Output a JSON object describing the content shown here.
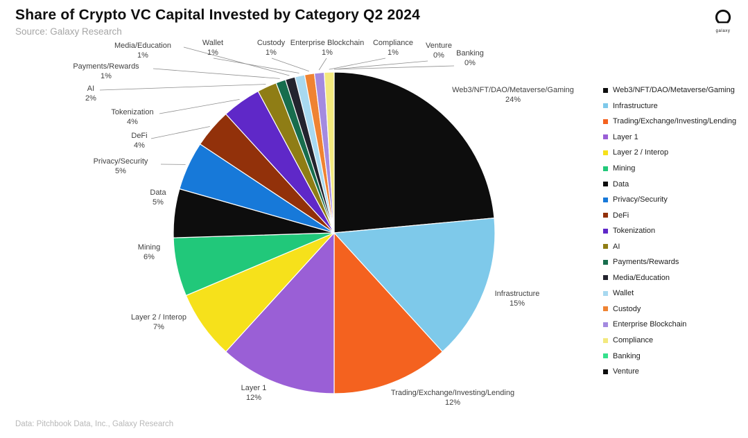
{
  "header": {
    "title": "Share of Crypto VC Capital Invested by Category Q2 2024",
    "subtitle": "Source: Galaxy Research",
    "logo_text": "galaxy"
  },
  "footer": {
    "source": "Data: Pitchbook Data, Inc., Galaxy Research"
  },
  "chart_data": {
    "type": "pie",
    "title": "Share of Crypto VC Capital Invested by Category Q2 2024",
    "source": "Data: Pitchbook Data, Inc., Galaxy Research",
    "legend_position": "right",
    "start_angle_deg": -90,
    "direction": "clockwise",
    "slices": [
      {
        "label": "Web3/NFT/DAO/Metaverse/Gaming",
        "value": 24,
        "pct": "24%",
        "color": "#0d0d0d"
      },
      {
        "label": "Infrastructure",
        "value": 15,
        "pct": "15%",
        "color": "#7ec9ea"
      },
      {
        "label": "Trading/Exchange/Investing/Lending",
        "value": 12,
        "pct": "12%",
        "color": "#f4621f"
      },
      {
        "label": "Layer 1",
        "value": 12,
        "pct": "12%",
        "color": "#9a5fd6"
      },
      {
        "label": "Layer 2 / Interop",
        "value": 7,
        "pct": "7%",
        "color": "#f6e11b"
      },
      {
        "label": "Mining",
        "value": 6,
        "pct": "6%",
        "color": "#21c87a"
      },
      {
        "label": "Data",
        "value": 5,
        "pct": "5%",
        "color": "#0d0d0d"
      },
      {
        "label": "Privacy/Security",
        "value": 5,
        "pct": "5%",
        "color": "#1779d9"
      },
      {
        "label": "DeFi",
        "value": 4,
        "pct": "4%",
        "color": "#92310a"
      },
      {
        "label": "Tokenization",
        "value": 4,
        "pct": "4%",
        "color": "#5f28c8"
      },
      {
        "label": "AI",
        "value": 2,
        "pct": "2%",
        "color": "#8f7d15"
      },
      {
        "label": "Payments/Rewards",
        "value": 1,
        "pct": "1%",
        "color": "#176d4d"
      },
      {
        "label": "Media/Education",
        "value": 1,
        "pct": "1%",
        "color": "#23232e"
      },
      {
        "label": "Wallet",
        "value": 1,
        "pct": "1%",
        "color": "#a8d9f0"
      },
      {
        "label": "Custody",
        "value": 1,
        "pct": "1%",
        "color": "#ef8332"
      },
      {
        "label": "Enterprise Blockchain",
        "value": 1,
        "pct": "1%",
        "color": "#a48ae0"
      },
      {
        "label": "Compliance",
        "value": 1,
        "pct": "1%",
        "color": "#f3e97e"
      },
      {
        "label": "Venture",
        "value": 0,
        "pct": "0%",
        "color": "#0d0d0d"
      },
      {
        "label": "Banking",
        "value": 0,
        "pct": "0%",
        "color": "#35e08c"
      }
    ],
    "legend_order": [
      "Web3/NFT/DAO/Metaverse/Gaming",
      "Infrastructure",
      "Trading/Exchange/Investing/Lending",
      "Layer 1",
      "Layer 2 / Interop",
      "Mining",
      "Data",
      "Privacy/Security",
      "DeFi",
      "Tokenization",
      "AI",
      "Payments/Rewards",
      "Media/Education",
      "Wallet",
      "Custody",
      "Enterprise Blockchain",
      "Compliance",
      "Banking",
      "Venture"
    ]
  }
}
